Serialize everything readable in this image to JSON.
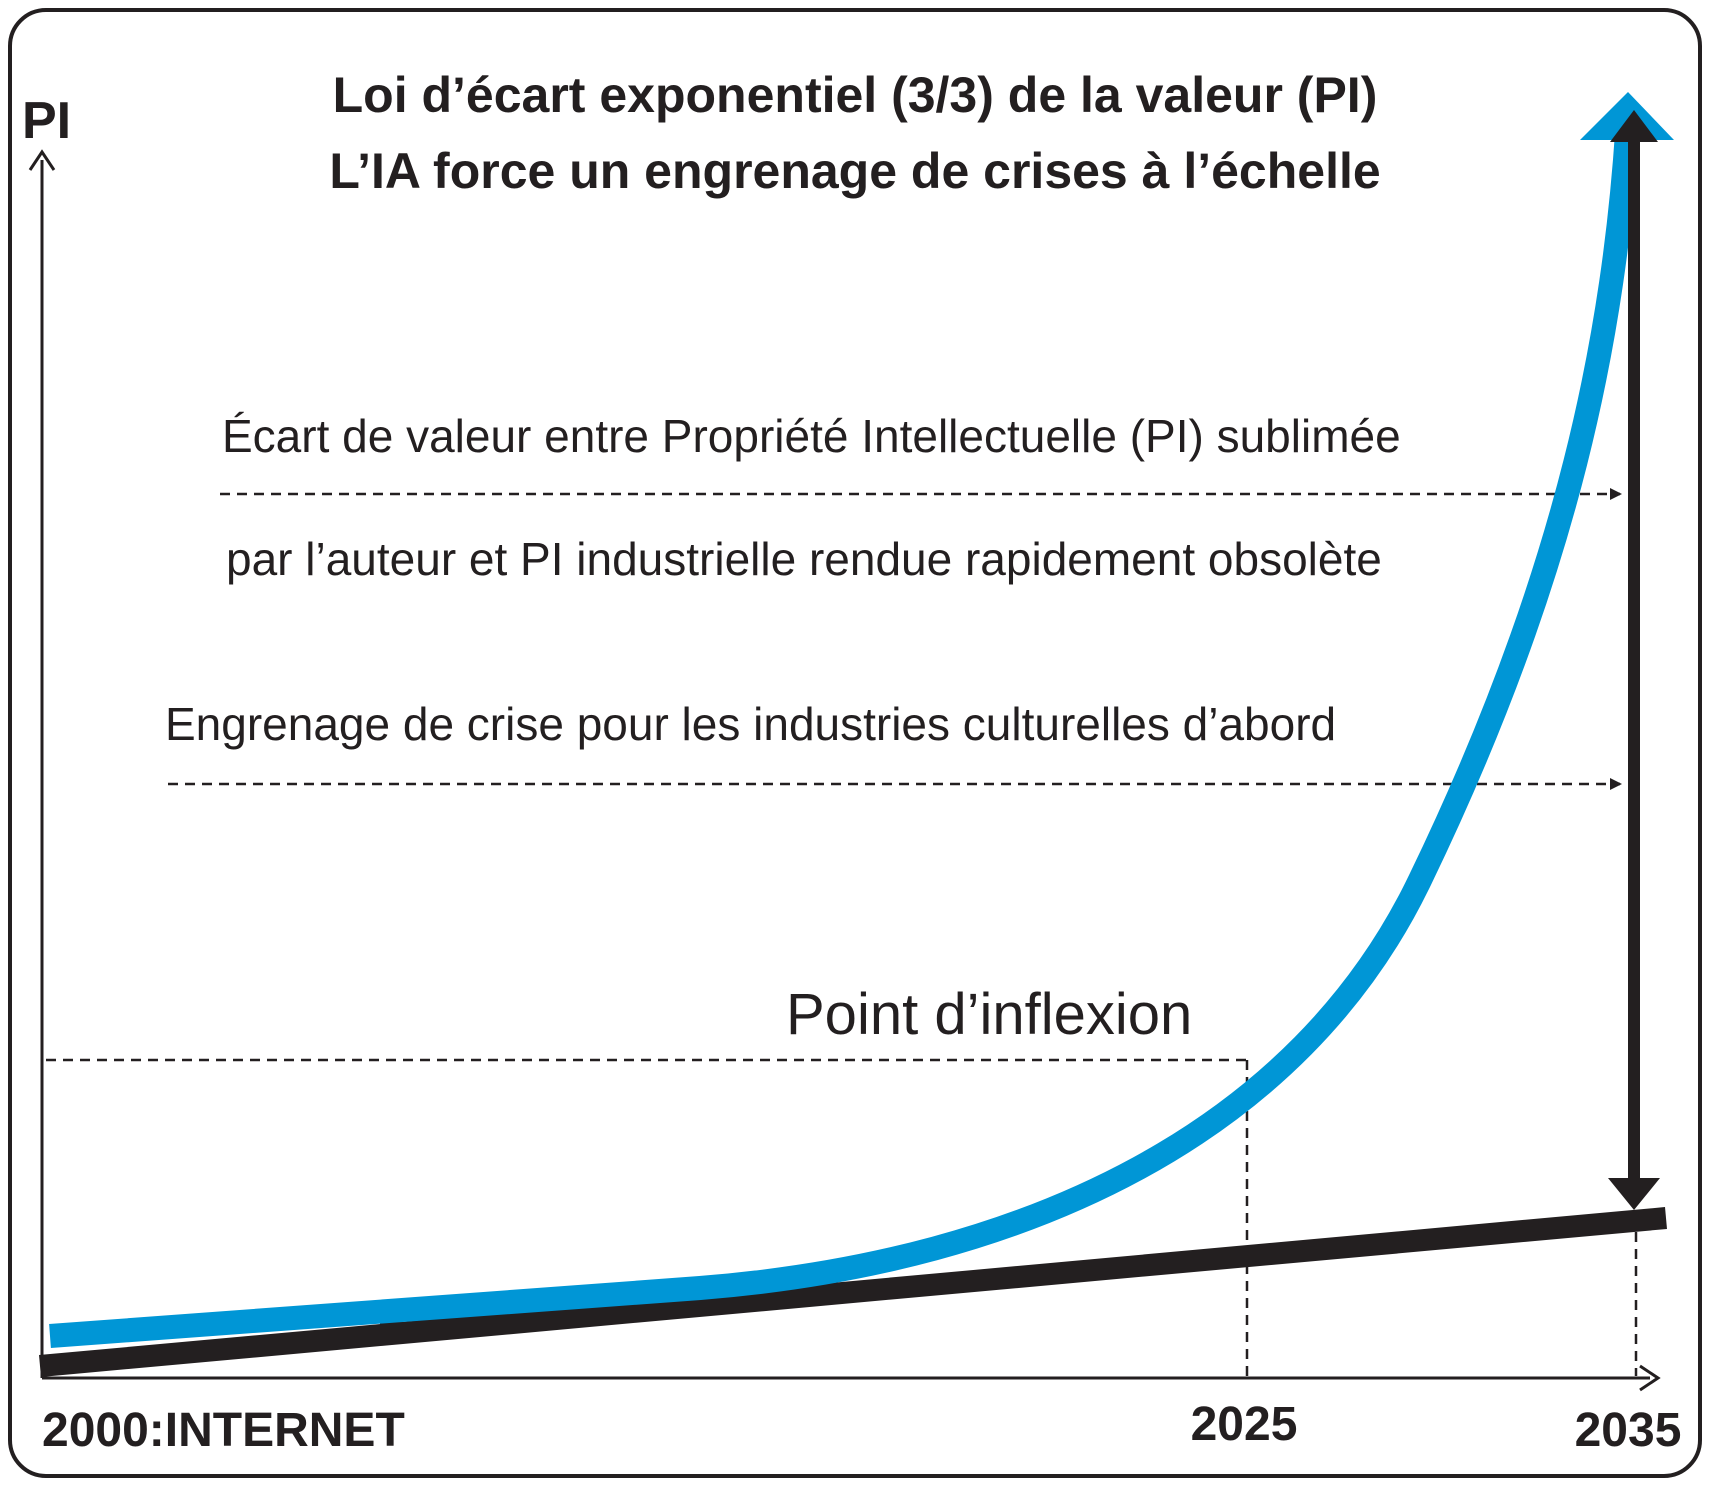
{
  "title": {
    "line1": "Loi d’écart exponentiel (3/3) de la valeur (PI)",
    "line2": "L’IA force un engrenage de crises à l’échelle"
  },
  "axis": {
    "y_label": "PI",
    "x_ticks": [
      "2000:INTERNET",
      "2025",
      "2035"
    ]
  },
  "annotations": {
    "gap_line1": "Écart de valeur entre Propriété Intellectuelle (PI) sublimée",
    "gap_line2": "par l’auteur et PI industrielle rendue rapidement obsolète",
    "crisis": "Engrenage de crise pour les industries culturelles d’abord",
    "inflection": "Point d’inflexion"
  },
  "colors": {
    "curve": "#0096d6",
    "ink": "#231f20",
    "background": "#ffffff"
  }
}
